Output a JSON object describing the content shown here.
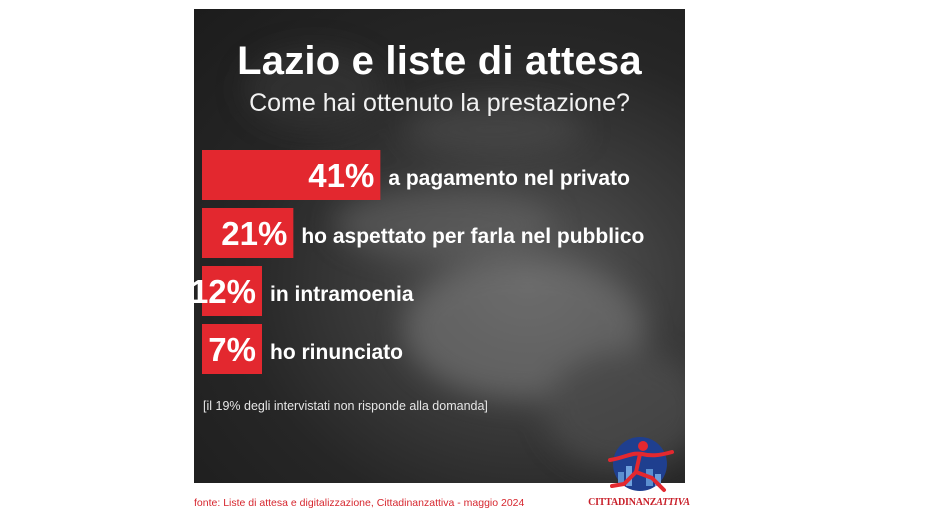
{
  "title": "Lazio e liste di attesa",
  "subtitle": "Come hai ottenuto la prestazione?",
  "note": "[il 19% degli intervistati non risponde alla domanda]",
  "source": "fonte: Liste di attesa e digitalizzazione, Cittadinanzattiva - maggio 2024",
  "logo": {
    "text_part1": "CITTADINANZ",
    "text_part2": "ATTIVA",
    "icon": "running-figure-logo-icon",
    "color": "#c8202a"
  },
  "colors": {
    "bar": "#e3282f",
    "text": "#ffffff",
    "background": "#262626"
  },
  "chart_data": {
    "type": "bar",
    "orientation": "horizontal",
    "title": "Lazio e liste di attesa",
    "subtitle": "Come hai ottenuto la prestazione?",
    "categories": [
      "a pagamento nel privato",
      "ho aspettato per farla nel pubblico",
      "in intramoenia",
      "ho rinunciato"
    ],
    "values": [
      41,
      21,
      12,
      7
    ],
    "value_labels": [
      "41%",
      "21%",
      "12%",
      "7%"
    ],
    "unit": "%",
    "grid": false,
    "axes_visible": false
  }
}
